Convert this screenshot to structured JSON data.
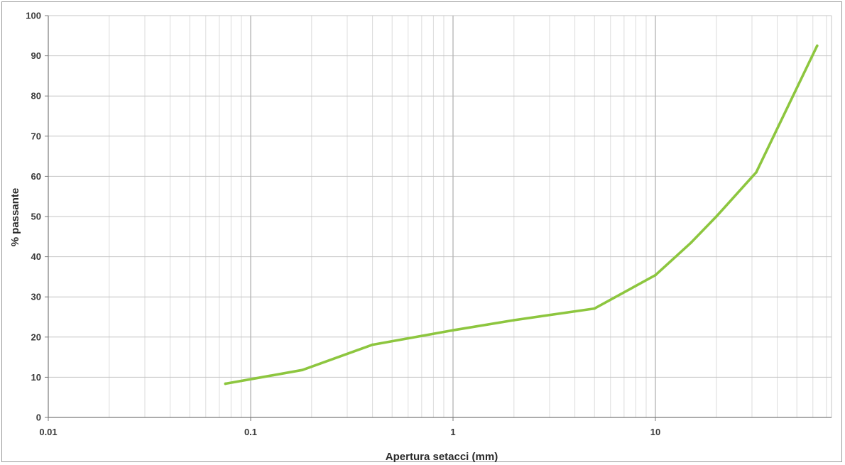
{
  "chart_data": {
    "type": "line",
    "title": "",
    "xlabel": "Apertura setacci (mm)",
    "ylabel": "% passante",
    "x_scale": "log",
    "xlim": [
      0.01,
      70
    ],
    "ylim": [
      0,
      100
    ],
    "x_ticks": [
      "0.01",
      "0.1",
      "1",
      "10"
    ],
    "y_ticks": [
      "0",
      "10",
      "20",
      "30",
      "40",
      "50",
      "60",
      "70",
      "80",
      "90",
      "100"
    ],
    "grid": true,
    "legend": "none",
    "series": [
      {
        "color": "#8dc63f",
        "x": [
          0.075,
          0.18,
          0.4,
          1,
          2,
          5,
          10,
          15,
          20,
          31.5,
          63
        ],
        "y": [
          8.4,
          11.8,
          18.1,
          21.7,
          24.2,
          27.1,
          35.4,
          43.5,
          50.0,
          61.0,
          92.5
        ]
      }
    ]
  }
}
